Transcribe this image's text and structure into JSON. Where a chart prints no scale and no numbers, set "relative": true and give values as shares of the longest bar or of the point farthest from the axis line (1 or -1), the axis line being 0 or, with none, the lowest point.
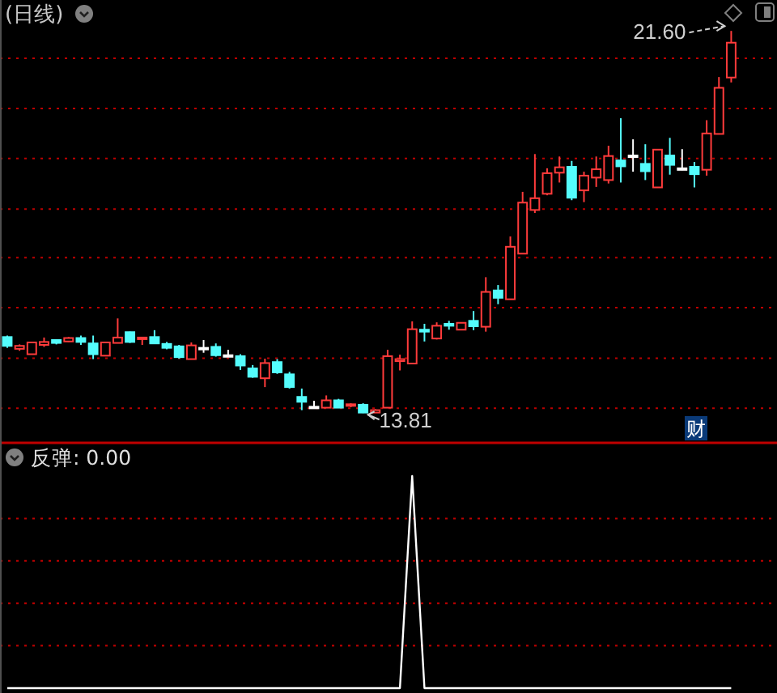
{
  "chart_data": [
    {
      "type": "candlestick",
      "title": "(日线)",
      "categories": [
        null,
        null,
        null,
        null,
        null,
        null,
        null,
        null,
        null,
        null,
        null,
        null,
        null,
        null,
        null,
        null,
        null,
        null,
        null,
        null,
        null,
        null,
        null,
        null,
        null,
        null,
        null,
        null,
        null,
        null,
        null,
        null,
        null,
        null,
        null,
        null,
        null,
        null,
        null,
        null,
        null,
        null,
        null,
        null,
        null,
        null,
        null,
        null,
        null,
        null,
        null,
        null,
        null,
        null,
        null,
        null,
        null,
        null,
        null,
        null
      ],
      "ohlc": [
        [
          15.36,
          15.39,
          15.14,
          15.18
        ],
        [
          15.12,
          15.21,
          15.08,
          15.18
        ],
        [
          15.01,
          15.25,
          15.01,
          15.25
        ],
        [
          15.2,
          15.35,
          15.16,
          15.26
        ],
        [
          15.3,
          15.3,
          15.21,
          15.24
        ],
        [
          15.27,
          15.36,
          15.26,
          15.34
        ],
        [
          15.34,
          15.39,
          15.2,
          15.26
        ],
        [
          15.23,
          15.39,
          14.91,
          15.01
        ],
        [
          14.98,
          15.25,
          14.98,
          15.25
        ],
        [
          15.24,
          15.74,
          15.24,
          15.35
        ],
        [
          15.46,
          15.47,
          15.24,
          15.26
        ],
        [
          15.33,
          15.35,
          15.2,
          15.35
        ],
        [
          15.36,
          15.5,
          15.23,
          15.23
        ],
        [
          15.22,
          15.26,
          15.11,
          15.14
        ],
        [
          15.17,
          15.2,
          14.92,
          14.95
        ],
        [
          14.91,
          15.25,
          14.91,
          15.19
        ],
        [
          15.14,
          15.3,
          15.04,
          15.14
        ],
        [
          15.16,
          15.23,
          14.96,
          14.99
        ],
        [
          14.99,
          15.1,
          14.99,
          14.99
        ],
        [
          14.97,
          15.01,
          14.69,
          14.78
        ],
        [
          14.72,
          14.79,
          14.53,
          14.55
        ],
        [
          14.52,
          14.92,
          14.34,
          14.83
        ],
        [
          14.85,
          14.91,
          14.61,
          14.64
        ],
        [
          14.6,
          14.65,
          14.31,
          14.34
        ],
        [
          14.14,
          14.31,
          13.87,
          14.04
        ],
        [
          13.94,
          14.06,
          13.9,
          13.94
        ],
        [
          13.92,
          14.17,
          13.92,
          14.07
        ],
        [
          14.07,
          14.1,
          13.92,
          13.92
        ],
        [
          13.96,
          14.01,
          13.93,
          13.99
        ],
        [
          13.98,
          14.01,
          13.81,
          13.82
        ],
        [
          13.82,
          13.89,
          13.82,
          13.87
        ],
        [
          13.92,
          15.1,
          13.92,
          14.97
        ],
        [
          14.87,
          15.0,
          14.68,
          14.91
        ],
        [
          14.82,
          15.68,
          14.82,
          15.52
        ],
        [
          15.51,
          15.63,
          15.27,
          15.47
        ],
        [
          15.33,
          15.66,
          15.31,
          15.59
        ],
        [
          15.63,
          15.69,
          15.51,
          15.59
        ],
        [
          15.51,
          15.65,
          15.51,
          15.65
        ],
        [
          15.69,
          15.89,
          15.5,
          15.58
        ],
        [
          15.57,
          16.58,
          15.47,
          16.28
        ],
        [
          16.31,
          16.42,
          16.03,
          16.16
        ],
        [
          16.13,
          17.41,
          16.13,
          17.2
        ],
        [
          17.06,
          18.32,
          17.06,
          18.1
        ],
        [
          17.95,
          19.09,
          17.89,
          18.19
        ],
        [
          18.28,
          18.8,
          18.25,
          18.7
        ],
        [
          18.71,
          19.04,
          18.51,
          18.82
        ],
        [
          18.83,
          18.95,
          18.15,
          18.2
        ],
        [
          18.35,
          18.73,
          18.11,
          18.65
        ],
        [
          18.61,
          19.04,
          18.42,
          18.78
        ],
        [
          18.56,
          19.26,
          18.49,
          19.05
        ],
        [
          18.96,
          19.82,
          18.51,
          18.84
        ],
        [
          19.06,
          19.39,
          18.73,
          19.06
        ],
        [
          18.89,
          19.29,
          18.56,
          18.74
        ],
        [
          18.41,
          19.18,
          18.41,
          19.18
        ],
        [
          19.06,
          19.42,
          18.67,
          18.87
        ],
        [
          18.8,
          19.19,
          18.76,
          18.8
        ],
        [
          18.83,
          18.93,
          18.41,
          18.68
        ],
        [
          18.77,
          19.78,
          18.65,
          19.51
        ],
        [
          19.5,
          20.66,
          19.5,
          20.44
        ],
        [
          20.65,
          21.6,
          20.55,
          21.36
        ]
      ],
      "ylim": [
        13.22,
        22.23
      ],
      "yticks": [
        {
          "value": 21.04,
          "label": null
        },
        {
          "value": 20.02,
          "label": null
        },
        {
          "value": 19.0,
          "label": null
        },
        {
          "value": 17.97,
          "label": null
        },
        {
          "value": 16.98,
          "label": null
        },
        {
          "value": 15.96,
          "label": null
        },
        {
          "value": 14.93,
          "label": null
        },
        {
          "value": 13.91,
          "label": null
        }
      ],
      "grid": true,
      "annotations": [
        "21.60",
        "13.81",
        "财"
      ]
    },
    {
      "type": "line",
      "title": "反弹: 0.00",
      "relative": true,
      "ref_lines": [
        {
          "axis": "y",
          "value": 0.8,
          "color": "#c00000",
          "line_style": "dotted"
        },
        {
          "axis": "y",
          "value": 0.6,
          "color": "#c00000",
          "line_style": "dotted"
        },
        {
          "axis": "y",
          "value": 0.4,
          "color": "#c00000",
          "line_style": "dotted"
        },
        {
          "axis": "y",
          "value": 0.2,
          "color": "#c00000",
          "line_style": "dotted"
        }
      ],
      "categories": [
        null,
        null,
        null,
        null,
        null,
        null,
        null,
        null,
        null,
        null,
        null,
        null,
        null,
        null,
        null,
        null,
        null,
        null,
        null,
        null,
        null,
        null,
        null,
        null,
        null,
        null,
        null,
        null,
        null,
        null,
        null,
        null,
        null,
        null,
        null,
        null,
        null,
        null,
        null,
        null,
        null,
        null,
        null,
        null,
        null,
        null,
        null,
        null,
        null,
        null,
        null,
        null,
        null,
        null,
        null,
        null,
        null,
        null,
        null,
        null
      ],
      "series": [
        {
          "color": "#ffffff",
          "values": [
            0,
            0,
            0,
            0,
            0,
            0,
            0,
            0,
            0,
            0,
            0,
            0,
            0,
            0,
            0,
            0,
            0,
            0,
            0,
            0,
            0,
            0,
            0,
            0,
            0,
            0,
            0,
            0,
            0,
            0,
            0,
            0,
            0,
            1,
            0,
            0,
            0,
            0,
            0,
            0,
            0,
            0,
            0,
            0,
            0,
            0,
            0,
            0,
            0,
            0,
            0,
            0,
            0,
            0,
            0,
            0,
            0,
            0,
            0,
            0
          ]
        }
      ]
    }
  ]
}
